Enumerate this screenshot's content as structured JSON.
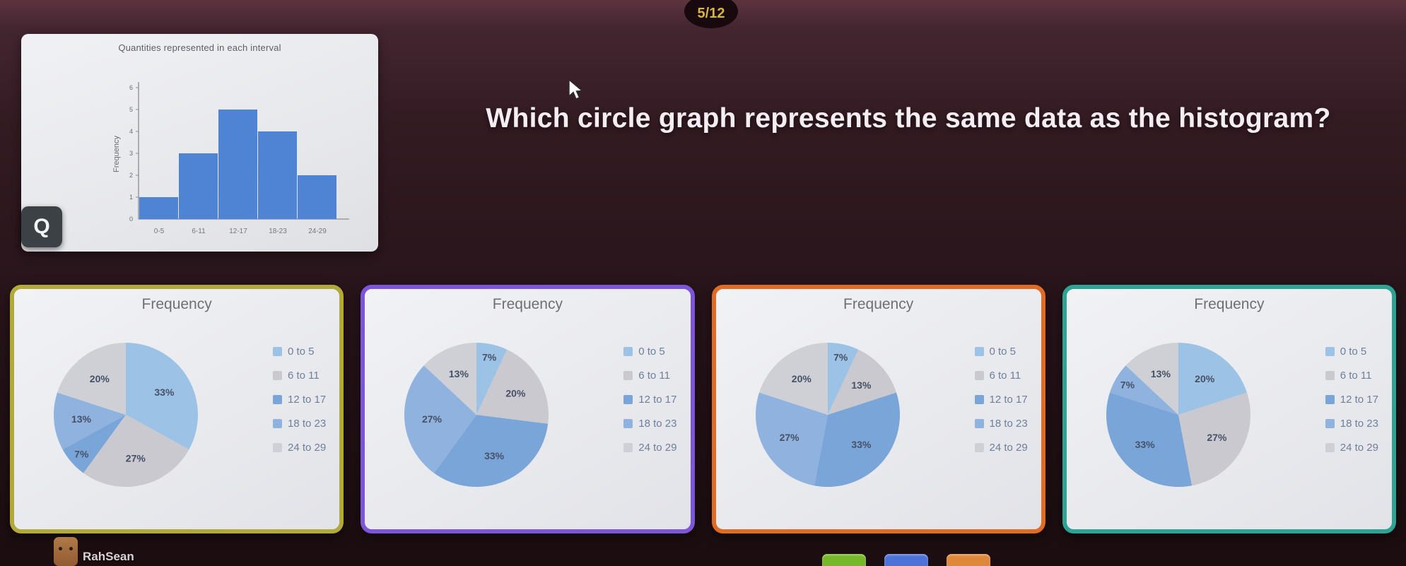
{
  "app": {
    "progress_label": "5/12"
  },
  "question": {
    "text": "Which circle graph represents the same data as the histogram?"
  },
  "tools": {
    "zoom_button_label": "Q"
  },
  "histogram_card": {
    "title": "Quantities represented in each interval",
    "ylabel": "Frequency",
    "categories": [
      "0-5",
      "6-11",
      "12-17",
      "18-23",
      "24-29"
    ],
    "values": [
      1,
      3,
      5,
      4,
      2
    ],
    "yticks": [
      1,
      2,
      3,
      4,
      5,
      6
    ],
    "bar_color": "#4f83d3"
  },
  "legend_labels": [
    "0 to 5",
    "6 to 11",
    "12 to 17",
    "18 to 23",
    "24 to 29"
  ],
  "slice_colors": [
    "#9cc2e5",
    "#c9c9cf",
    "#7aa5d8",
    "#8fb2de",
    "#ced0d6"
  ],
  "options": [
    {
      "title": "Frequency",
      "border_color": "#b1a93a",
      "percents": [
        33,
        27,
        7,
        13,
        20
      ]
    },
    {
      "title": "Frequency",
      "border_color": "#7d55d8",
      "percents": [
        7,
        20,
        33,
        27,
        13
      ]
    },
    {
      "title": "Frequency",
      "border_color": "#e06b25",
      "percents": [
        7,
        13,
        33,
        27,
        20
      ]
    },
    {
      "title": "Frequency",
      "border_color": "#2ea393",
      "percents": [
        20,
        27,
        33,
        7,
        13
      ]
    }
  ],
  "footer": {
    "username": "RahSean"
  },
  "footer_buttons": [
    {
      "name": "green-button",
      "color": "#76b82a"
    },
    {
      "name": "blue-button",
      "color": "#4e73d8"
    },
    {
      "name": "orange-button",
      "color": "#e0883a"
    }
  ],
  "chart_data": [
    {
      "type": "bar",
      "title": "Quantities represented in each interval",
      "categories": [
        "0-5",
        "6-11",
        "12-17",
        "18-23",
        "24-29"
      ],
      "values": [
        1,
        3,
        5,
        4,
        2
      ],
      "xlabel": "",
      "ylabel": "Frequency",
      "ylim": [
        0,
        6
      ],
      "grid": false,
      "legend_position": "none"
    },
    {
      "type": "pie",
      "title": "Frequency",
      "categories": [
        "0 to 5",
        "6 to 11",
        "12 to 17",
        "18 to 23",
        "24 to 29"
      ],
      "values": [
        33,
        27,
        7,
        13,
        20
      ],
      "legend_position": "right"
    },
    {
      "type": "pie",
      "title": "Frequency",
      "categories": [
        "0 to 5",
        "6 to 11",
        "12 to 17",
        "18 to 23",
        "24 to 29"
      ],
      "values": [
        7,
        20,
        33,
        27,
        13
      ],
      "legend_position": "right"
    },
    {
      "type": "pie",
      "title": "Frequency",
      "categories": [
        "0 to 5",
        "6 to 11",
        "12 to 17",
        "18 to 23",
        "24 to 29"
      ],
      "values": [
        7,
        13,
        33,
        27,
        20
      ],
      "legend_position": "right"
    },
    {
      "type": "pie",
      "title": "Frequency",
      "categories": [
        "0 to 5",
        "6 to 11",
        "12 to 17",
        "18 to 23",
        "24 to 29"
      ],
      "values": [
        20,
        27,
        33,
        7,
        13
      ],
      "legend_position": "right"
    }
  ]
}
